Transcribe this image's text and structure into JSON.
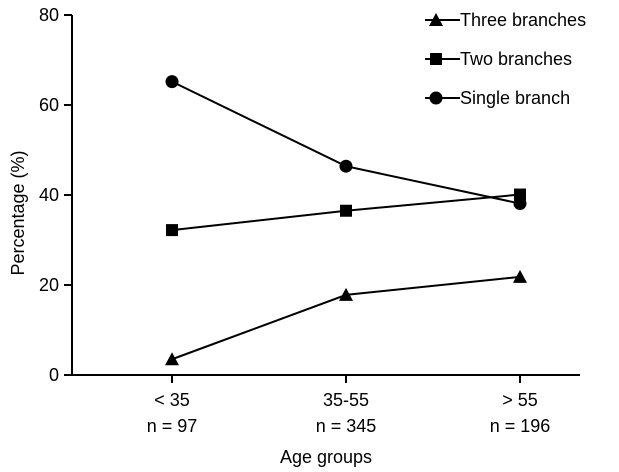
{
  "chart_data": {
    "type": "line",
    "title": "",
    "xlabel": "Age groups",
    "ylabel": "Percentage (%)",
    "ylim": [
      0,
      80
    ],
    "yticks": [
      0,
      20,
      40,
      60,
      80
    ],
    "categories": [
      {
        "label": "< 35",
        "n": "n = 97"
      },
      {
        "label": "35-55",
        "n": "n = 345"
      },
      {
        "label": "> 55",
        "n": "n = 196"
      }
    ],
    "series": [
      {
        "name": "Three branches",
        "marker": "triangle",
        "values": [
          3.5,
          17.8,
          21.8
        ]
      },
      {
        "name": "Two branches",
        "marker": "square",
        "values": [
          32.2,
          36.5,
          40.1
        ]
      },
      {
        "name": "Single branch",
        "marker": "circle",
        "values": [
          65.2,
          46.4,
          38.1
        ]
      }
    ],
    "grid": false,
    "legend_position": "top-right",
    "line_color": "#000000"
  }
}
